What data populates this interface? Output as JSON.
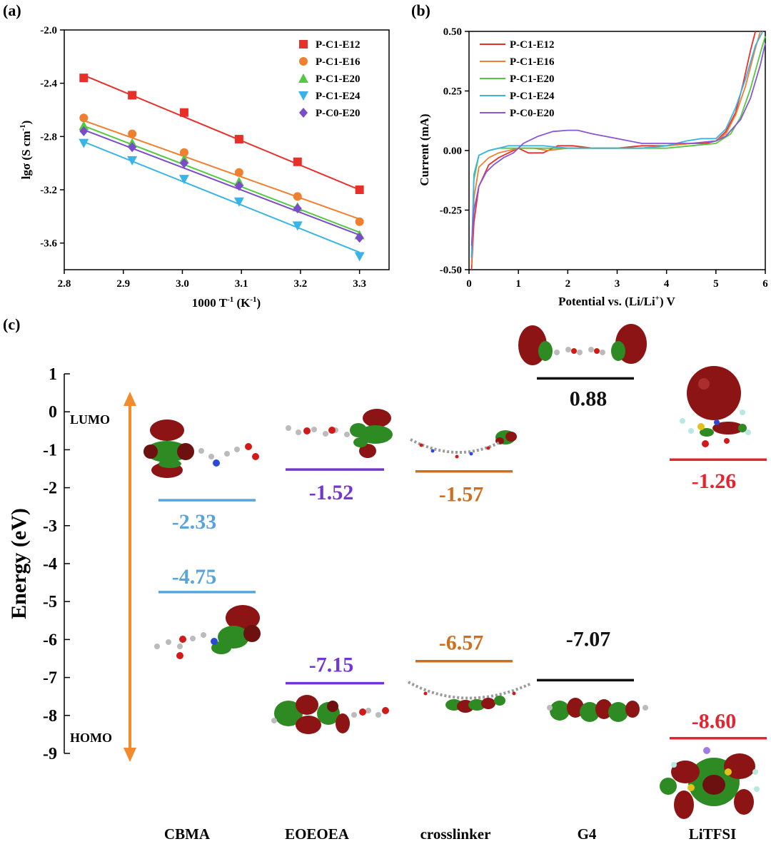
{
  "chart_data": [
    {
      "panel": "(a)",
      "type": "scatter",
      "xlabel": "1000 T-1 (K-1)",
      "xlabel_parts": [
        "1000 T",
        "-1",
        " (K",
        "-1",
        ")"
      ],
      "ylabel": "lgσ (S cm-1)",
      "ylabel_parts": [
        "lgσ (S cm",
        "-1",
        ")"
      ],
      "xlim": [
        2.8,
        3.35
      ],
      "ylim": [
        -3.8,
        -2.0
      ],
      "xticks": [
        2.8,
        2.9,
        3.0,
        3.1,
        3.2,
        3.3
      ],
      "xtick_labels": [
        "2.8",
        "2.9",
        "3.0",
        "3.1",
        "3.2",
        "3.3"
      ],
      "yticks": [
        -2.0,
        -2.4,
        -2.8,
        -3.2,
        -3.6
      ],
      "ytick_labels": [
        "-2.0",
        "-2.4",
        "-2.8",
        "-3.2",
        "-3.6"
      ],
      "legend_position": "top-right",
      "x": [
        2.833,
        2.915,
        3.003,
        3.096,
        3.195,
        3.3
      ],
      "series": [
        {
          "name": "P-C1-E12",
          "color": "#e8302a",
          "marker": "square",
          "values": [
            -2.36,
            -2.49,
            -2.62,
            -2.82,
            -2.99,
            -3.2
          ],
          "fit": [
            -2.34,
            -3.2
          ]
        },
        {
          "name": "P-C1-E16",
          "color": "#f07f30",
          "marker": "circle",
          "values": [
            -2.66,
            -2.78,
            -2.92,
            -3.07,
            -3.25,
            -3.44
          ],
          "fit": [
            -2.68,
            -3.42
          ]
        },
        {
          "name": "P-C1-E20",
          "color": "#55c843",
          "marker": "triangle-up",
          "values": [
            -2.72,
            -2.85,
            -2.97,
            -3.14,
            -3.33,
            -3.54
          ],
          "fit": [
            -2.72,
            -3.52
          ]
        },
        {
          "name": "P-C1-E24",
          "color": "#3ab4e8",
          "marker": "triangle-down",
          "values": [
            -2.85,
            -2.98,
            -3.12,
            -3.29,
            -3.47,
            -3.7
          ],
          "fit": [
            -2.84,
            -3.67
          ]
        },
        {
          "name": "P-C0-E20",
          "color": "#7a4ccb",
          "marker": "diamond",
          "values": [
            -2.76,
            -2.88,
            -3.0,
            -3.17,
            -3.34,
            -3.56
          ],
          "fit": [
            -2.75,
            -3.54
          ]
        }
      ]
    },
    {
      "panel": "(b)",
      "type": "line",
      "xlabel": "Potential vs. (Li/Li+) V",
      "xlabel_parts": [
        "Potential vs. (Li/Li",
        "+",
        ") V"
      ],
      "ylabel": "Current (mA)",
      "xlim": [
        0,
        6
      ],
      "ylim": [
        -0.5,
        0.5
      ],
      "xticks": [
        0,
        1,
        2,
        3,
        4,
        5,
        6
      ],
      "xtick_labels": [
        "0",
        "1",
        "2",
        "3",
        "4",
        "5",
        "6"
      ],
      "yticks": [
        0.5,
        0.25,
        0.0,
        -0.25,
        -0.5
      ],
      "ytick_labels": [
        "0.50",
        "0.25",
        "0.00",
        "-0.25",
        "-0.50"
      ],
      "legend_position": "top-left",
      "series": [
        {
          "name": "P-C1-E12",
          "color": "#e8302a",
          "x": [
            0.05,
            0.1,
            0.2,
            0.4,
            0.6,
            0.8,
            1.0,
            1.2,
            1.5,
            1.8,
            2.1,
            2.5,
            3.0,
            3.5,
            4.0,
            4.5,
            4.8,
            5.0,
            5.2,
            5.4,
            5.55,
            5.7,
            5.8
          ],
          "y": [
            -0.5,
            -0.3,
            -0.15,
            -0.06,
            -0.03,
            -0.01,
            0.01,
            -0.01,
            -0.01,
            0.02,
            0.02,
            0.01,
            0.01,
            0.02,
            0.02,
            0.03,
            0.03,
            0.04,
            0.08,
            0.16,
            0.28,
            0.42,
            0.5
          ]
        },
        {
          "name": "P-C1-E16",
          "color": "#f07f30",
          "x": [
            0.05,
            0.1,
            0.2,
            0.4,
            0.6,
            0.8,
            1.0,
            1.3,
            1.6,
            2.0,
            2.5,
            3.0,
            3.5,
            4.0,
            4.5,
            5.0,
            5.2,
            5.4,
            5.6,
            5.8,
            5.9
          ],
          "y": [
            -0.48,
            -0.2,
            -0.07,
            -0.03,
            -0.01,
            0.0,
            0.01,
            0.01,
            0.0,
            0.01,
            0.01,
            0.01,
            0.01,
            0.02,
            0.03,
            0.04,
            0.07,
            0.15,
            0.27,
            0.43,
            0.5
          ]
        },
        {
          "name": "P-C1-E20",
          "color": "#55c843",
          "x": [
            0.05,
            0.1,
            0.2,
            0.4,
            0.6,
            0.8,
            1.0,
            1.5,
            2.0,
            2.5,
            3.0,
            3.5,
            4.0,
            4.5,
            5.0,
            5.3,
            5.5,
            5.7,
            5.9,
            6.0
          ],
          "y": [
            -0.45,
            -0.12,
            -0.02,
            0.0,
            0.01,
            0.01,
            0.01,
            0.01,
            0.01,
            0.01,
            0.01,
            0.01,
            0.01,
            0.02,
            0.03,
            0.07,
            0.14,
            0.26,
            0.41,
            0.48
          ]
        },
        {
          "name": "P-C1-E24",
          "color": "#3ab4e8",
          "x": [
            0.05,
            0.1,
            0.2,
            0.4,
            0.6,
            0.8,
            1.0,
            1.5,
            2.0,
            2.5,
            3.0,
            3.5,
            4.0,
            4.4,
            4.7,
            5.0,
            5.2,
            5.4,
            5.6,
            5.8,
            5.95
          ],
          "y": [
            -0.45,
            -0.1,
            -0.02,
            0.0,
            0.01,
            0.02,
            0.02,
            0.02,
            0.01,
            0.01,
            0.01,
            0.01,
            0.02,
            0.04,
            0.05,
            0.05,
            0.09,
            0.18,
            0.3,
            0.44,
            0.5
          ]
        },
        {
          "name": "P-C0-E20",
          "color": "#8a55d8",
          "x": [
            0.05,
            0.1,
            0.2,
            0.35,
            0.5,
            0.7,
            0.9,
            1.1,
            1.4,
            1.7,
            2.0,
            2.2,
            2.5,
            3.0,
            3.5,
            4.0,
            4.5,
            5.0,
            5.2,
            5.5,
            5.7,
            5.9,
            6.0
          ],
          "y": [
            -0.4,
            -0.25,
            -0.15,
            -0.09,
            -0.06,
            -0.03,
            -0.01,
            0.03,
            0.06,
            0.08,
            0.085,
            0.085,
            0.07,
            0.05,
            0.03,
            0.03,
            0.03,
            0.04,
            0.06,
            0.13,
            0.22,
            0.36,
            0.45
          ]
        }
      ]
    },
    {
      "panel": "(c)",
      "type": "energy-level-diagram",
      "ylabel": "Energy (eV)",
      "ylim": [
        -9,
        1
      ],
      "yticks": [
        1,
        0,
        -1,
        -2,
        -3,
        -4,
        -5,
        -6,
        -7,
        -8,
        -9
      ],
      "ytick_labels": [
        "1",
        "0",
        "-1",
        "-2",
        "-3",
        "-4",
        "-5",
        "-6",
        "-7",
        "-8",
        "-9"
      ],
      "lumo_label": "LUMO",
      "homo_label": "HOMO",
      "molecules": [
        {
          "name": "CBMA",
          "color": "#5aa4dc",
          "lumo": -2.33,
          "homo": -4.75,
          "lumo_text": "-2.33",
          "homo_text": "-4.75"
        },
        {
          "name": "EOEOEA",
          "color": "#7436d0",
          "lumo": -1.52,
          "homo": -7.15,
          "lumo_text": "-1.52",
          "homo_text": "-7.15"
        },
        {
          "name": "crosslinker",
          "color": "#cf6f1e",
          "lumo": -1.57,
          "homo": -6.57,
          "lumo_text": "-1.57",
          "homo_text": "-6.57"
        },
        {
          "name": "G4",
          "color": "#111111",
          "lumo": 0.88,
          "homo": -7.07,
          "lumo_text": "0.88",
          "homo_text": "-7.07"
        },
        {
          "name": "LiTFSI",
          "color": "#e52431",
          "lumo": -1.26,
          "homo": -8.6,
          "lumo_text": "-1.26",
          "homo_text": "-8.60"
        }
      ]
    }
  ]
}
